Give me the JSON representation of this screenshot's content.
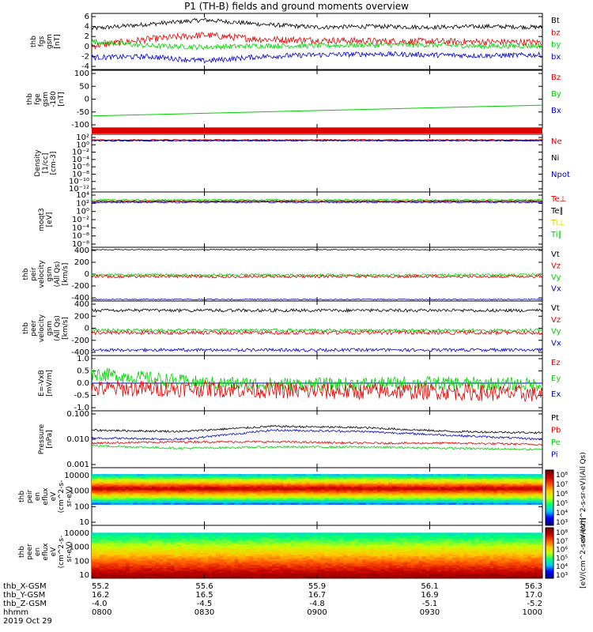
{
  "title": "P1 (TH-B) fields and ground moments overview",
  "colors": {
    "black": "#000000",
    "red": "#e00000",
    "green": "#00d000",
    "blue": "#0000d0"
  },
  "chart_data": [
    {
      "type": "line",
      "ylabel": [
        "thb",
        "fgs",
        "gsm",
        "[nT]"
      ],
      "yticks": [
        "6",
        "4",
        "2",
        "0",
        "-2",
        "-4"
      ],
      "ylim": [
        -6,
        7
      ],
      "series": [
        {
          "name": "Bt",
          "color": "#000000",
          "values": [
            3.5,
            4.5,
            5.5,
            4.5,
            3.8,
            4.0,
            3.8,
            4.0,
            3.8
          ]
        },
        {
          "name": "bz",
          "color": "#e00000",
          "values": [
            -0.5,
            1.0,
            2.0,
            1.0,
            0.8,
            0.6,
            0.5,
            0.4,
            0.3
          ]
        },
        {
          "name": "by",
          "color": "#00d000",
          "values": [
            0.5,
            -0.5,
            -0.8,
            -0.5,
            -0.5,
            -0.3,
            -0.3,
            -0.6,
            -0.5
          ]
        },
        {
          "name": "bx",
          "color": "#0000d0",
          "values": [
            -3.2,
            -3.0,
            -4.0,
            -3.0,
            -2.6,
            -2.4,
            -2.6,
            -2.8,
            -2.6
          ]
        }
      ]
    },
    {
      "type": "line",
      "ylabel": [
        "thb",
        "fge",
        "gsm",
        "-180",
        "[nT]"
      ],
      "yticks": [
        "100",
        "50",
        "0",
        "-50",
        "-100"
      ],
      "ylim": [
        -130,
        110
      ],
      "series": [
        {
          "name": "Bz",
          "color": "#e00000",
          "values": []
        },
        {
          "name": "By",
          "color": "#00d000",
          "values": [
            -80,
            -35
          ]
        },
        {
          "name": "Bx",
          "color": "#0000d0",
          "values": []
        }
      ]
    },
    {
      "type": "line",
      "ylabel": [
        "Density",
        "[1/cc]",
        "[cm-3]"
      ],
      "yticks": [
        "10²",
        "10⁰",
        "10⁻²",
        "10⁻⁴",
        "10⁻⁶",
        "10⁻⁸",
        "10⁻¹⁰",
        "10⁻¹²"
      ],
      "ylim": [
        -12.5,
        2.5
      ],
      "log": true,
      "series": [
        {
          "name": "Ne",
          "color": "#e00000",
          "values": [
            0.3,
            0.3
          ]
        },
        {
          "name": "Ni",
          "color": "#000000",
          "values": [
            0.2,
            0.2
          ]
        },
        {
          "name": "Npot",
          "color": "#0000d0",
          "values": [
            0.1,
            0.1
          ]
        }
      ]
    },
    {
      "type": "line",
      "ylabel": [
        "moqt3",
        "[eV]"
      ],
      "yticks": [
        "10⁴",
        "10²",
        "10⁰",
        "10⁻²",
        "10⁻⁴",
        "10⁻⁶",
        "10⁻⁸"
      ],
      "ylim": [
        -9,
        4.5
      ],
      "log": true,
      "series": [
        {
          "name": "Te⊥",
          "color": "#e00000",
          "values": [
            2.5,
            2.5
          ]
        },
        {
          "name": "Te∥",
          "color": "#000000",
          "values": [
            2.6,
            2.6
          ]
        },
        {
          "name": "Ti⊥",
          "color": "#d0d000",
          "values": [
            2.8,
            2.8
          ]
        },
        {
          "name": "Ti∥",
          "color": "#00d000",
          "values": [
            2.9,
            2.9
          ]
        }
      ]
    },
    {
      "type": "line",
      "ylabel": [
        "thb",
        "peir",
        "velocity",
        "gsm",
        "(All Qs)",
        "[km/s]"
      ],
      "yticks": [
        "400",
        "200",
        "0",
        "-200",
        "-400"
      ],
      "ylim": [
        -450,
        450
      ],
      "series": [
        {
          "name": "Vt",
          "color": "#000000",
          "values": [
            440,
            440
          ]
        },
        {
          "name": "Vz",
          "color": "#e00000",
          "values": [
            0,
            0
          ]
        },
        {
          "name": "Vy",
          "color": "#00d000",
          "values": [
            5,
            5
          ]
        },
        {
          "name": "Vx",
          "color": "#0000d0",
          "values": [
            -440,
            -440
          ]
        }
      ]
    },
    {
      "type": "line",
      "ylabel": [
        "thb",
        "peer",
        "velocity",
        "gsm",
        "(All Qs)",
        "[km/s]"
      ],
      "yticks": [
        "400",
        "200",
        "0",
        "-200",
        "-400"
      ],
      "ylim": [
        -450,
        450
      ],
      "series": [
        {
          "name": "Vt",
          "color": "#000000",
          "values": [
            310,
            310
          ]
        },
        {
          "name": "Vz",
          "color": "#e00000",
          "values": [
            -30,
            -30
          ]
        },
        {
          "name": "Vy",
          "color": "#00d000",
          "values": [
            -5,
            -5
          ]
        },
        {
          "name": "Vx",
          "color": "#0000d0",
          "values": [
            -300,
            -300
          ]
        }
      ]
    },
    {
      "type": "line",
      "ylabel": [
        "E=-VxB",
        "[mV/m]"
      ],
      "yticks": [
        "1.0",
        "0.5",
        "0.0",
        "-0.5",
        "-1.0"
      ],
      "ylim": [
        -1.0,
        1.0
      ],
      "series": [
        {
          "name": "Ez",
          "color": "#e00000",
          "values": [
            -0.2,
            -0.3
          ]
        },
        {
          "name": "Ey",
          "color": "#00d000",
          "values": [
            0.3,
            -0.1
          ]
        },
        {
          "name": "Ex",
          "color": "#0000d0",
          "values": [
            0.0,
            0.0
          ]
        }
      ]
    },
    {
      "type": "line",
      "ylabel": [
        "Pressure",
        "[nPa]"
      ],
      "yticks": [
        "0.100",
        "0.010",
        "0.001"
      ],
      "ylim": [
        -3,
        -0.8
      ],
      "log": true,
      "series": [
        {
          "name": "Pt",
          "color": "#000000",
          "values": [
            -1.6,
            -1.6
          ]
        },
        {
          "name": "Pb",
          "color": "#e00000",
          "values": [
            -2.1,
            -2.1
          ]
        },
        {
          "name": "Pe",
          "color": "#00d000",
          "values": [
            -2.2,
            -2.2
          ]
        },
        {
          "name": "Pi",
          "color": "#0000d0",
          "values": [
            -1.8,
            -1.8
          ]
        }
      ]
    },
    {
      "type": "heatmap",
      "ylabel": [
        "thb",
        "peir",
        "en",
        "eflux",
        "eV",
        "(cm^2-s-",
        "sr-eV)"
      ],
      "yticks": [
        "10000",
        "1000",
        "100",
        "10"
      ],
      "colorbar": {
        "ticks": [
          "10⁸",
          "10⁷",
          "10⁶",
          "10⁵",
          "10⁴",
          "10³"
        ],
        "label": "eV/(cm^2-s-sr-eV)(All Qs)"
      }
    },
    {
      "type": "heatmap",
      "ylabel": [
        "thb",
        "peer",
        "en",
        "eflux",
        "eV",
        "(cm^2-s-",
        "sr-eV)"
      ],
      "yticks": [
        "10000",
        "1000",
        "100",
        "10"
      ],
      "colorbar": {
        "ticks": [
          "10⁸",
          "10⁷",
          "10⁶",
          "10⁵",
          "10⁴",
          "10³"
        ],
        "label": "[eV/(cm^2-s-sr-eV)]"
      }
    }
  ],
  "xaxis": {
    "rows": [
      {
        "label": "thb_X-GSM",
        "values": [
          "55.2",
          "55.6",
          "55.9",
          "56.1",
          "56.3"
        ]
      },
      {
        "label": "thb_Y-GSM",
        "values": [
          "16.2",
          "16.5",
          "16.7",
          "16.9",
          "17.0"
        ]
      },
      {
        "label": "thb_Z-GSM",
        "values": [
          "-4.0",
          "-4.5",
          "-4.8",
          "-5.1",
          "-5.2"
        ]
      },
      {
        "label": "hhmm",
        "values": [
          "0800",
          "0830",
          "0900",
          "0930",
          "1000"
        ]
      }
    ],
    "date": "2019 Oct 29"
  }
}
